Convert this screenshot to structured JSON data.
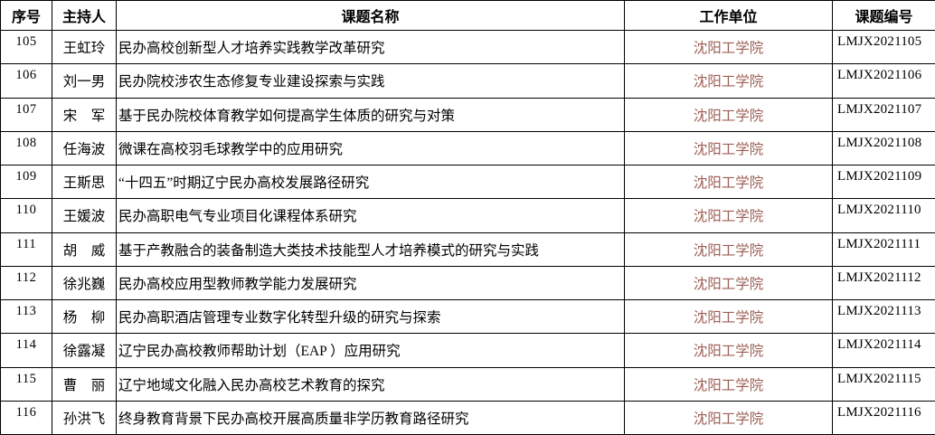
{
  "colors": {
    "unit_text": "#9c5e54",
    "body_text": "#000000",
    "border": "#000000",
    "background": "#ffffff"
  },
  "table": {
    "columns": [
      {
        "key": "no",
        "label": "序号"
      },
      {
        "key": "host",
        "label": "主持人"
      },
      {
        "key": "title",
        "label": "课题名称"
      },
      {
        "key": "unit",
        "label": "工作单位"
      },
      {
        "key": "code",
        "label": "课题编号"
      }
    ],
    "rows": [
      {
        "no": "105",
        "host": "王虹玲",
        "title": "民办高校创新型人才培养实践教学改革研究",
        "unit": "沈阳工学院",
        "code": "LMJX2021105"
      },
      {
        "no": "106",
        "host": "刘一男",
        "title": "民办院校涉农生态修复专业建设探索与实践",
        "unit": "沈阳工学院",
        "code": "LMJX2021106"
      },
      {
        "no": "107",
        "host": "宋　军",
        "title": "基于民办院校体育教学如何提高学生体质的研究与对策",
        "unit": "沈阳工学院",
        "code": "LMJX2021107"
      },
      {
        "no": "108",
        "host": "任海波",
        "title": "微课在高校羽毛球教学中的应用研究",
        "unit": "沈阳工学院",
        "code": "LMJX2021108"
      },
      {
        "no": "109",
        "host": "王斯思",
        "title": "“十四五”时期辽宁民办高校发展路径研究",
        "unit": "沈阳工学院",
        "code": "LMJX2021109"
      },
      {
        "no": "110",
        "host": "王媛波",
        "title": "民办高职电气专业项目化课程体系研究",
        "unit": "沈阳工学院",
        "code": "LMJX2021110"
      },
      {
        "no": "111",
        "host": "胡　威",
        "title": "基于产教融合的装备制造大类技术技能型人才培养模式的研究与实践",
        "unit": "沈阳工学院",
        "code": "LMJX2021111"
      },
      {
        "no": "112",
        "host": "徐兆巍",
        "title": "民办高校应用型教师教学能力发展研究",
        "unit": "沈阳工学院",
        "code": "LMJX2021112"
      },
      {
        "no": "113",
        "host": "杨　柳",
        "title": "民办高职酒店管理专业数字化转型升级的研究与探索",
        "unit": "沈阳工学院",
        "code": "LMJX2021113"
      },
      {
        "no": "114",
        "host": "徐露凝",
        "title": "辽宁民办高校教师帮助计划（EAP ）应用研究",
        "unit": "沈阳工学院",
        "code": "LMJX2021114"
      },
      {
        "no": "115",
        "host": "曹　丽",
        "title": "辽宁地域文化融入民办高校艺术教育的探究",
        "unit": "沈阳工学院",
        "code": "LMJX2021115"
      },
      {
        "no": "116",
        "host": "孙洪飞",
        "title": "终身教育背景下民办高校开展高质量非学历教育路径研究",
        "unit": "沈阳工学院",
        "code": "LMJX2021116"
      }
    ]
  }
}
